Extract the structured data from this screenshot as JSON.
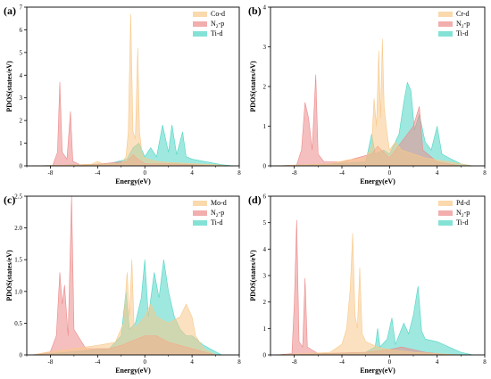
{
  "figure": {
    "panels": [
      "(a)",
      "(b)",
      "(c)",
      "(d)"
    ]
  },
  "colors": {
    "metal_d": "#f8c98a",
    "n2_p": "#ec8a8a",
    "ti_d": "#4fd6c4",
    "overlap": "#8bbf75"
  },
  "chart_data": [
    {
      "type": "area",
      "panel": "(a)",
      "xlabel": "Energy(eV)",
      "ylabel": "PDOS(states/eV)",
      "xlim": [
        -10,
        8
      ],
      "ylim": [
        0,
        7
      ],
      "xticks": [
        "-8",
        "-4",
        "0",
        "4",
        "8"
      ],
      "yticks": [
        "0",
        "1",
        "2",
        "3",
        "4",
        "5",
        "6",
        "7"
      ],
      "legend_position": "top-right",
      "series": [
        {
          "name": "Co-d",
          "label_main": "Co-d",
          "label_sub": "",
          "label_tail": "",
          "key": "metal_d",
          "points": [
            [
              -9.5,
              0
            ],
            [
              -8,
              0.02
            ],
            [
              -6,
              0.03
            ],
            [
              -4.5,
              0.08
            ],
            [
              -4,
              0.2
            ],
            [
              -3.5,
              0.08
            ],
            [
              -2,
              0.1
            ],
            [
              -1.6,
              0.4
            ],
            [
              -1.4,
              1.5
            ],
            [
              -1.2,
              6.7
            ],
            [
              -1.0,
              1.5
            ],
            [
              -0.8,
              1.2
            ],
            [
              -0.6,
              5.2
            ],
            [
              -0.45,
              1.5
            ],
            [
              -0.2,
              0.4
            ],
            [
              0.3,
              0.3
            ],
            [
              1,
              0.2
            ],
            [
              2,
              0.15
            ],
            [
              4,
              0.1
            ],
            [
              6,
              0.05
            ],
            [
              7,
              0
            ]
          ]
        },
        {
          "name": "N2-p",
          "label_main": "N",
          "label_sub": "2",
          "label_tail": "-p",
          "key": "n2_p",
          "points": [
            [
              -9.5,
              0
            ],
            [
              -7.8,
              0.02
            ],
            [
              -7.4,
              0.6
            ],
            [
              -7.2,
              3.7
            ],
            [
              -7.0,
              0.6
            ],
            [
              -6.6,
              0.3
            ],
            [
              -6.3,
              2.4
            ],
            [
              -6.1,
              0.2
            ],
            [
              -5.5,
              0.05
            ],
            [
              -4,
              0.08
            ],
            [
              -1.5,
              0.2
            ],
            [
              -1,
              0.5
            ],
            [
              -0.6,
              0.3
            ],
            [
              0,
              0.1
            ],
            [
              2,
              0.1
            ],
            [
              4,
              0.05
            ],
            [
              6,
              0
            ]
          ]
        },
        {
          "name": "Ti-d",
          "label_main": "Ti-d",
          "label_sub": "",
          "label_tail": "",
          "key": "ti_d",
          "points": [
            [
              -9.5,
              0
            ],
            [
              -5,
              0.05
            ],
            [
              -3,
              0.1
            ],
            [
              -1.5,
              0.3
            ],
            [
              -1,
              0.8
            ],
            [
              -0.5,
              1.0
            ],
            [
              0,
              0.4
            ],
            [
              0.5,
              0.8
            ],
            [
              1,
              0.4
            ],
            [
              1.5,
              1.8
            ],
            [
              2,
              0.6
            ],
            [
              2.3,
              1.8
            ],
            [
              2.7,
              0.5
            ],
            [
              3.2,
              1.5
            ],
            [
              3.5,
              0.4
            ],
            [
              4,
              0.3
            ],
            [
              5,
              0.2
            ],
            [
              6.5,
              0.05
            ],
            [
              7.5,
              0
            ]
          ]
        }
      ]
    },
    {
      "type": "area",
      "panel": "(b)",
      "xlabel": "Energy(eV)",
      "ylabel": "PDOS(states/eV)",
      "xlim": [
        -10,
        8
      ],
      "ylim": [
        0,
        4
      ],
      "xticks": [
        "-8",
        "-4",
        "0",
        "4",
        "8"
      ],
      "yticks": [
        "0",
        "1",
        "2",
        "3",
        "4"
      ],
      "legend_position": "top-right",
      "series": [
        {
          "name": "Cr-d",
          "label_main": "Cr-d",
          "label_sub": "",
          "label_tail": "",
          "key": "metal_d",
          "points": [
            [
              -9.5,
              0
            ],
            [
              -5,
              0.05
            ],
            [
              -3.5,
              0.15
            ],
            [
              -2,
              0.2
            ],
            [
              -1.5,
              0.5
            ],
            [
              -1.3,
              1.7
            ],
            [
              -1.1,
              1.0
            ],
            [
              -0.9,
              2.9
            ],
            [
              -0.75,
              1.2
            ],
            [
              -0.6,
              3.2
            ],
            [
              -0.45,
              1.5
            ],
            [
              -0.2,
              0.8
            ],
            [
              0,
              0.4
            ],
            [
              0.5,
              0.6
            ],
            [
              1,
              0.4
            ],
            [
              2,
              0.3
            ],
            [
              3,
              0.2
            ],
            [
              5,
              0.1
            ],
            [
              7,
              0
            ]
          ]
        },
        {
          "name": "N2-p",
          "label_main": "N",
          "label_sub": "2",
          "label_tail": "-p",
          "key": "n2_p",
          "points": [
            [
              -9.5,
              0
            ],
            [
              -7.8,
              0.02
            ],
            [
              -7.4,
              0.4
            ],
            [
              -7.1,
              1.6
            ],
            [
              -6.8,
              1.2
            ],
            [
              -6.5,
              0.4
            ],
            [
              -6.2,
              2.3
            ],
            [
              -6.0,
              0.3
            ],
            [
              -5.5,
              0.1
            ],
            [
              -4,
              0.1
            ],
            [
              -1.5,
              0.3
            ],
            [
              -1,
              0.5
            ],
            [
              0,
              0.2
            ],
            [
              2,
              1.0
            ],
            [
              2.5,
              1.5
            ],
            [
              2.8,
              0.4
            ],
            [
              4,
              0.1
            ],
            [
              6,
              0
            ]
          ]
        },
        {
          "name": "Ti-d",
          "label_main": "Ti-d",
          "label_sub": "",
          "label_tail": "",
          "key": "ti_d",
          "points": [
            [
              -9.5,
              0
            ],
            [
              -5,
              0.05
            ],
            [
              -2,
              0.1
            ],
            [
              -1.5,
              0.8
            ],
            [
              -1.2,
              0.3
            ],
            [
              -0.5,
              0.4
            ],
            [
              0,
              0.3
            ],
            [
              0.8,
              0.8
            ],
            [
              1.2,
              1.6
            ],
            [
              1.5,
              2.1
            ],
            [
              1.8,
              1.9
            ],
            [
              2.1,
              0.9
            ],
            [
              2.5,
              1.3
            ],
            [
              3,
              0.6
            ],
            [
              3.5,
              0.4
            ],
            [
              4,
              1.0
            ],
            [
              4.4,
              0.3
            ],
            [
              5,
              0.2
            ],
            [
              6,
              0.05
            ],
            [
              7,
              0
            ]
          ]
        }
      ]
    },
    {
      "type": "area",
      "panel": "(c)",
      "xlabel": "Energy(eV)",
      "ylabel": "PDOS(states/eV)",
      "xlim": [
        -10,
        8
      ],
      "ylim": [
        0,
        2.5
      ],
      "xticks": [
        "-8",
        "-4",
        "0",
        "4",
        "8"
      ],
      "yticks": [
        "0",
        "0.5",
        "1.0",
        "1.5",
        "2.0",
        "2.5"
      ],
      "ytick_values": [
        0,
        0.5,
        1,
        1.5,
        2,
        2.5
      ],
      "legend_position": "top-right",
      "series": [
        {
          "name": "Mo-d",
          "label_main": "Mo-d",
          "label_sub": "",
          "label_tail": "",
          "key": "metal_d",
          "points": [
            [
              -9.5,
              0
            ],
            [
              -8,
              0.05
            ],
            [
              -6,
              0.1
            ],
            [
              -4,
              0.15
            ],
            [
              -2.5,
              0.2
            ],
            [
              -1.8,
              0.5
            ],
            [
              -1.5,
              1.3
            ],
            [
              -1.3,
              0.6
            ],
            [
              -1.1,
              1.5
            ],
            [
              -0.9,
              0.4
            ],
            [
              0,
              0.6
            ],
            [
              0.5,
              0.8
            ],
            [
              1,
              0.6
            ],
            [
              2,
              0.5
            ],
            [
              3,
              0.6
            ],
            [
              3.5,
              0.8
            ],
            [
              4,
              0.6
            ],
            [
              4.3,
              0.3
            ],
            [
              5,
              0.1
            ],
            [
              6,
              0
            ]
          ]
        },
        {
          "name": "N2-p",
          "label_main": "N",
          "label_sub": "2",
          "label_tail": "-p",
          "key": "n2_p",
          "points": [
            [
              -9.5,
              0
            ],
            [
              -8,
              0.05
            ],
            [
              -7.5,
              0.3
            ],
            [
              -7.2,
              1.3
            ],
            [
              -7.0,
              0.8
            ],
            [
              -6.8,
              1.1
            ],
            [
              -6.5,
              0.3
            ],
            [
              -6.2,
              2.5
            ],
            [
              -6.0,
              0.4
            ],
            [
              -5,
              0.1
            ],
            [
              -3,
              0.1
            ],
            [
              -2,
              0.15
            ],
            [
              0,
              0.3
            ],
            [
              1,
              0.3
            ],
            [
              2,
              0.2
            ],
            [
              4,
              0.1
            ],
            [
              6,
              0
            ]
          ]
        },
        {
          "name": "Ti-d",
          "label_main": "Ti-d",
          "label_sub": "",
          "label_tail": "",
          "key": "ti_d",
          "points": [
            [
              -9.5,
              0
            ],
            [
              -6,
              0.05
            ],
            [
              -3,
              0.1
            ],
            [
              -2,
              0.3
            ],
            [
              -1.6,
              1.0
            ],
            [
              -1.3,
              0.4
            ],
            [
              -0.8,
              0.5
            ],
            [
              -0.3,
              0.9
            ],
            [
              0,
              1.5
            ],
            [
              0.3,
              0.6
            ],
            [
              0.8,
              1.3
            ],
            [
              1.2,
              0.9
            ],
            [
              1.6,
              1.5
            ],
            [
              2,
              1.0
            ],
            [
              2.5,
              0.6
            ],
            [
              3,
              0.4
            ],
            [
              3.5,
              0.3
            ],
            [
              4,
              0.3
            ],
            [
              5,
              0.15
            ],
            [
              6.5,
              0
            ]
          ]
        }
      ]
    },
    {
      "type": "area",
      "panel": "(d)",
      "xlabel": "Energy(eV)",
      "ylabel": "PDOS(states/eV)",
      "xlim": [
        -10,
        8
      ],
      "ylim": [
        0,
        6
      ],
      "xticks": [
        "-8",
        "-4",
        "0",
        "4",
        "8"
      ],
      "yticks": [
        "0",
        "1",
        "2",
        "3",
        "4",
        "5",
        "6"
      ],
      "legend_position": "top-right",
      "series": [
        {
          "name": "Pd-d",
          "label_main": "Pd-d",
          "label_sub": "",
          "label_tail": "",
          "key": "metal_d",
          "points": [
            [
              -9.5,
              0
            ],
            [
              -7,
              0.05
            ],
            [
              -5,
              0.1
            ],
            [
              -4,
              0.4
            ],
            [
              -3.6,
              1.0
            ],
            [
              -3.3,
              2.5
            ],
            [
              -3.1,
              4.6
            ],
            [
              -2.9,
              1.5
            ],
            [
              -2.7,
              1.0
            ],
            [
              -2.5,
              3.3
            ],
            [
              -2.3,
              0.8
            ],
            [
              -2,
              0.5
            ],
            [
              -1,
              0.3
            ],
            [
              0,
              0.2
            ],
            [
              2,
              0.1
            ],
            [
              4,
              0.05
            ],
            [
              6,
              0
            ]
          ]
        },
        {
          "name": "N2-p",
          "label_main": "N",
          "label_sub": "2",
          "label_tail": "-p",
          "key": "n2_p",
          "points": [
            [
              -9.5,
              0
            ],
            [
              -8.2,
              0.05
            ],
            [
              -8.0,
              2.0
            ],
            [
              -7.8,
              5.1
            ],
            [
              -7.6,
              0.5
            ],
            [
              -7.3,
              0.3
            ],
            [
              -7.1,
              2.9
            ],
            [
              -6.9,
              0.3
            ],
            [
              -6,
              0.05
            ],
            [
              -2,
              0.1
            ],
            [
              0,
              0.2
            ],
            [
              1,
              0.3
            ],
            [
              2,
              0.2
            ],
            [
              3,
              0.1
            ],
            [
              5,
              0
            ]
          ]
        },
        {
          "name": "Ti-d",
          "label_main": "Ti-d",
          "label_sub": "",
          "label_tail": "",
          "key": "ti_d",
          "points": [
            [
              -9.5,
              0
            ],
            [
              -5,
              0.05
            ],
            [
              -2,
              0.1
            ],
            [
              -1.2,
              0.3
            ],
            [
              -1.0,
              1.0
            ],
            [
              -0.8,
              0.3
            ],
            [
              -0.2,
              0.6
            ],
            [
              0.2,
              1.4
            ],
            [
              0.5,
              0.4
            ],
            [
              1.2,
              1.2
            ],
            [
              1.6,
              0.8
            ],
            [
              2,
              1.5
            ],
            [
              2.4,
              2.6
            ],
            [
              2.7,
              0.9
            ],
            [
              3,
              0.6
            ],
            [
              4,
              0.5
            ],
            [
              5,
              0.3
            ],
            [
              6,
              0.1
            ],
            [
              7,
              0
            ]
          ]
        }
      ]
    }
  ]
}
